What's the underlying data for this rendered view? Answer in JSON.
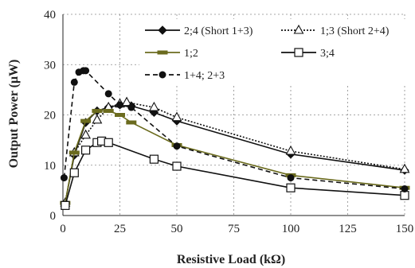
{
  "chart_data": {
    "type": "line",
    "title": "",
    "xlabel": "Resistive Load (kΩ)",
    "ylabel": "Output Power (μW)",
    "xlim": [
      0,
      150
    ],
    "ylim": [
      0,
      40
    ],
    "xticks": [
      "0",
      "25",
      "50",
      "75",
      "100",
      "125",
      "150"
    ],
    "yticks": [
      "0",
      "10",
      "20",
      "30",
      "40"
    ],
    "grid": "dashed",
    "legend_position": "top-right",
    "series": [
      {
        "name": "2;4 (Short 1+3)",
        "color": "#111111",
        "dash": "",
        "marker": "diamond",
        "x": [
          1,
          5,
          10,
          15,
          20,
          25,
          30,
          40,
          50,
          100,
          150
        ],
        "y": [
          2.5,
          12,
          18.5,
          20.8,
          21.5,
          22,
          21.8,
          20.5,
          18.8,
          12.2,
          9
        ]
      },
      {
        "name": "1;3 (Short 2+4)",
        "color": "#111111",
        "dash": "2,2",
        "marker": "triangle",
        "x": [
          1,
          5,
          10,
          15,
          20,
          25,
          28,
          40,
          50,
          100,
          150
        ],
        "y": [
          2.5,
          12.5,
          16,
          19,
          21.5,
          22.2,
          22.5,
          21.5,
          19.5,
          12.8,
          9.2
        ]
      },
      {
        "name": "1;2",
        "color": "#6b6b1e",
        "dash": "",
        "marker": "dash",
        "x": [
          1,
          5,
          10,
          15,
          20,
          25,
          30,
          50,
          100,
          150
        ],
        "y": [
          2.5,
          12.5,
          18.8,
          20.8,
          20.8,
          20,
          18.5,
          14,
          8,
          5.5
        ]
      },
      {
        "name": "3;4",
        "color": "#111111",
        "dash": "",
        "marker": "square",
        "x": [
          1,
          5,
          10,
          15,
          17,
          20,
          40,
          50,
          100,
          150
        ],
        "y": [
          2,
          8.5,
          13,
          14.5,
          14.8,
          14.5,
          11.2,
          9.8,
          5.5,
          4
        ]
      },
      {
        "name": "1+4; 2+3",
        "color": "#111111",
        "dash": "6,4",
        "marker": "circle",
        "x": [
          0.5,
          5,
          7,
          9,
          10,
          20,
          25,
          30,
          50,
          100,
          150
        ],
        "y": [
          7.5,
          26.5,
          28.5,
          28.8,
          28.8,
          24.2,
          22,
          21.5,
          13.8,
          7.5,
          5.3
        ]
      }
    ]
  }
}
